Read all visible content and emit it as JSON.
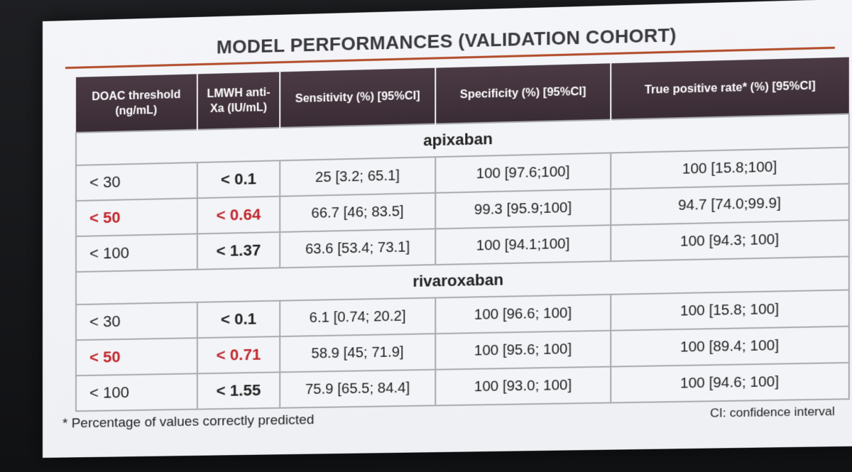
{
  "title": "MODEL PERFORMANCES (VALIDATION COHORT)",
  "colors": {
    "header_bg": "#3f2f39",
    "rule": "#b24d2c",
    "highlight": "#c1272d"
  },
  "headers": [
    "DOAC threshold (ng/mL)",
    "LMWH anti-Xa (IU/mL)",
    "Sensitivity (%) [95%CI]",
    "Specificity (%) [95%CI]",
    "True positive rate* (%) [95%CI]"
  ],
  "groups": [
    {
      "name": "apixaban",
      "rows": [
        [
          "< 30",
          "< 0.1",
          "25 [3.2; 65.1]",
          "100 [97.6;100]",
          "100  [15.8;100]"
        ],
        [
          "< 50",
          "< 0.64",
          "66.7 [46; 83.5]",
          "99.3  [95.9;100]",
          "94.7 [74.0;99.9]"
        ],
        [
          "< 100",
          "< 1.37",
          "63.6 [53.4; 73.1]",
          "100  [94.1;100]",
          "100  [94.3; 100]"
        ]
      ]
    },
    {
      "name": "rivaroxaban",
      "rows": [
        [
          "< 30",
          "< 0.1",
          "6.1 [0.74; 20.2]",
          "100  [96.6; 100]",
          "100  [15.8; 100]"
        ],
        [
          "< 50",
          "< 0.71",
          "58.9  [45; 71.9]",
          "100  [95.6; 100]",
          "100  [89.4; 100]"
        ],
        [
          "< 100",
          "< 1.55",
          "75.9 [65.5; 84.4]",
          "100 [93.0; 100]",
          "100  [94.6; 100]"
        ]
      ]
    }
  ],
  "footnote": "* Percentage of values correctly predicted",
  "ci_note": "CI: confidence interval"
}
